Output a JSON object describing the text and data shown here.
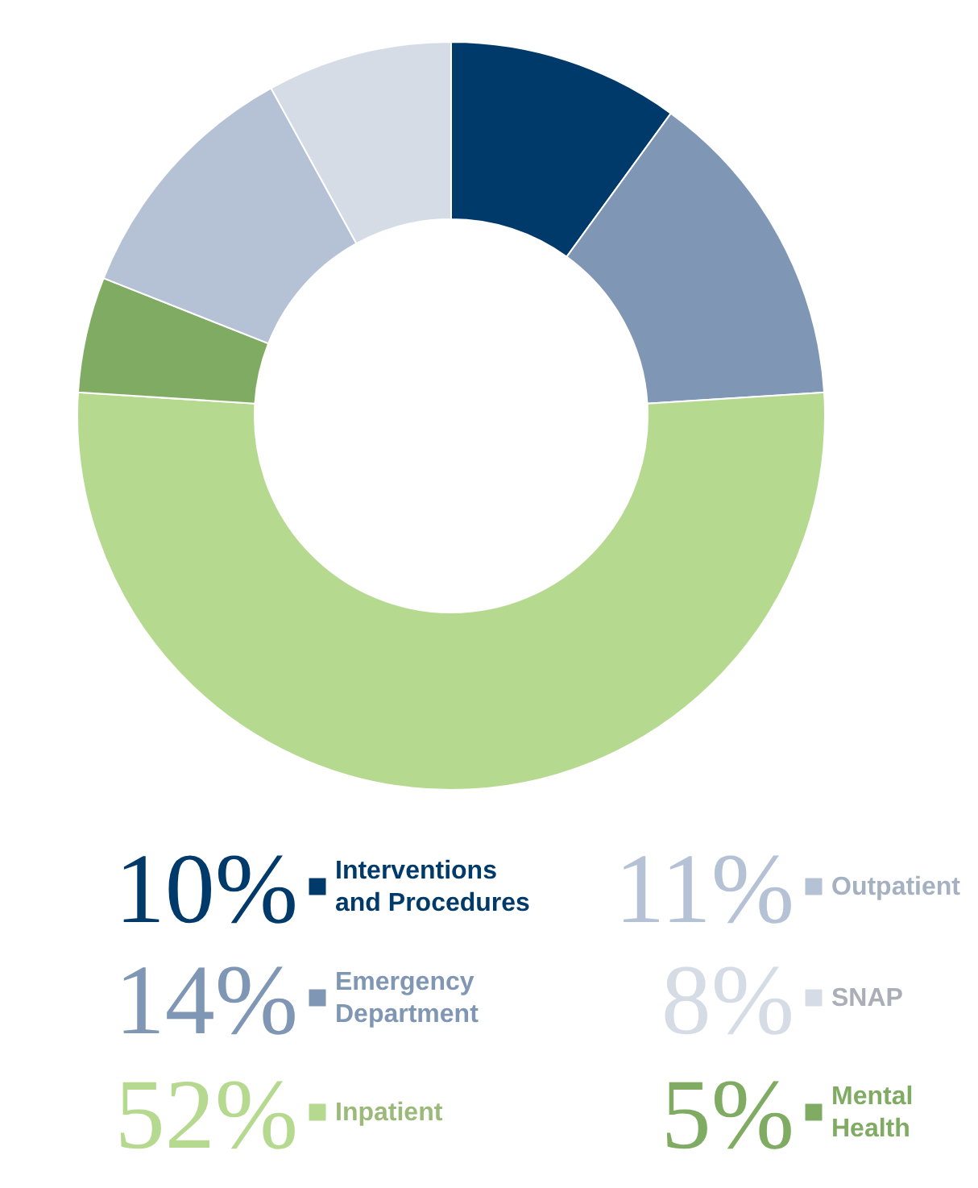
{
  "chart_data": {
    "type": "donut",
    "categories": [
      "Interventions and Procedures",
      "Emergency Department",
      "Inpatient",
      "Mental Health",
      "Outpatient",
      "SNAP"
    ],
    "values": [
      10,
      14,
      52,
      5,
      11,
      8
    ],
    "value_labels": [
      "10%",
      "14%",
      "52%",
      "5%",
      "11%",
      "8%"
    ],
    "colors": [
      "#003a6a",
      "#7f96b4",
      "#b5d98f",
      "#80ab62",
      "#b5c1d4",
      "#d6dce6"
    ],
    "legend": "bottom"
  }
}
